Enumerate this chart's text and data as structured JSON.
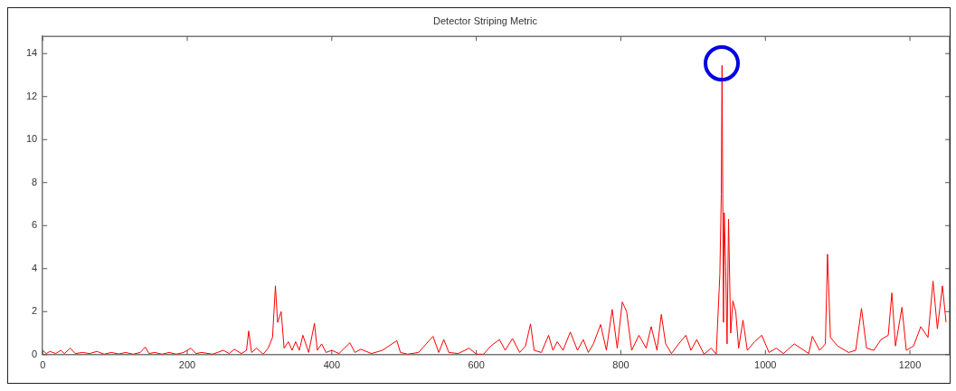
{
  "chart_data": {
    "type": "line",
    "title": "Detector Striping Metric",
    "x": [
      0,
      5,
      10,
      18,
      25,
      30,
      38,
      45,
      55,
      65,
      75,
      85,
      95,
      105,
      115,
      125,
      135,
      142,
      147,
      155,
      165,
      175,
      185,
      195,
      205,
      212,
      220,
      235,
      250,
      258,
      265,
      275,
      282,
      285,
      289,
      296,
      305,
      312,
      318,
      322,
      325,
      330,
      334,
      340,
      345,
      350,
      355,
      360,
      368,
      376,
      380,
      386,
      392,
      400,
      410,
      425,
      432,
      440,
      455,
      470,
      490,
      495,
      505,
      520,
      540,
      548,
      555,
      562,
      575,
      590,
      600,
      610,
      620,
      632,
      640,
      650,
      660,
      668,
      675,
      680,
      690,
      700,
      706,
      712,
      720,
      730,
      740,
      748,
      755,
      762,
      772,
      780,
      788,
      795,
      802,
      808,
      815,
      825,
      835,
      842,
      850,
      856,
      862,
      870,
      880,
      890,
      897,
      905,
      915,
      925,
      932,
      937,
      939,
      940,
      942,
      943,
      945,
      947,
      949,
      952,
      955,
      959,
      963,
      969,
      975,
      985,
      995,
      1005,
      1015,
      1025,
      1040,
      1060,
      1065,
      1075,
      1083,
      1086,
      1090,
      1100,
      1115,
      1125,
      1133,
      1140,
      1150,
      1160,
      1170,
      1175,
      1180,
      1189,
      1195,
      1205,
      1215,
      1225,
      1232,
      1238,
      1245,
      1250
    ],
    "series": [
      {
        "color": "#ff0000",
        "values": [
          0.2,
          0.05,
          0.15,
          0.05,
          0.2,
          0.05,
          0.3,
          0.05,
          0.1,
          0.05,
          0.15,
          0.02,
          0.1,
          0.03,
          0.1,
          0.02,
          0.1,
          0.35,
          0.05,
          0.1,
          0.02,
          0.1,
          0.02,
          0.1,
          0.3,
          0.05,
          0.1,
          0.02,
          0.2,
          0.05,
          0.25,
          0.05,
          0.2,
          1.1,
          0.1,
          0.3,
          0.02,
          0.3,
          0.8,
          3.2,
          1.5,
          2.0,
          0.3,
          0.6,
          0.2,
          0.6,
          0.2,
          0.9,
          0.1,
          1.45,
          0.2,
          0.5,
          0.1,
          0.2,
          0.05,
          0.55,
          0.1,
          0.25,
          0.05,
          0.2,
          0.65,
          0.1,
          0.02,
          0.1,
          0.85,
          0.1,
          0.7,
          0.1,
          0.05,
          0.3,
          0.02,
          0.02,
          0.4,
          0.7,
          0.2,
          0.75,
          0.1,
          0.4,
          1.43,
          0.2,
          0.1,
          0.9,
          0.2,
          0.6,
          0.2,
          1.05,
          0.2,
          0.7,
          0.1,
          0.5,
          1.4,
          0.2,
          2.1,
          0.3,
          2.45,
          2.0,
          0.2,
          0.9,
          0.3,
          1.3,
          0.2,
          1.87,
          0.5,
          0.05,
          0.5,
          0.9,
          0.2,
          0.7,
          0.02,
          0.3,
          0.02,
          3.75,
          7.47,
          13.45,
          1.5,
          6.6,
          4.1,
          0.5,
          6.3,
          1.0,
          2.5,
          2.0,
          0.3,
          1.6,
          0.2,
          0.6,
          0.9,
          0.1,
          0.3,
          0.05,
          0.5,
          0.05,
          0.85,
          0.2,
          0.5,
          4.67,
          0.8,
          0.4,
          0.1,
          0.2,
          2.15,
          0.3,
          0.2,
          0.7,
          0.9,
          2.87,
          0.4,
          2.2,
          0.2,
          0.4,
          1.3,
          0.8,
          3.42,
          1.2,
          3.2,
          1.5
        ]
      }
    ],
    "xlim": [
      0,
      1255
    ],
    "xticks": [
      0,
      200,
      400,
      600,
      800,
      1000,
      1200
    ],
    "ylim": [
      0,
      14.8
    ],
    "yticks": [
      0,
      2,
      4,
      6,
      8,
      10,
      12,
      14
    ],
    "grid": false,
    "legend": false,
    "marker": "none",
    "line_style": "solid"
  }
}
